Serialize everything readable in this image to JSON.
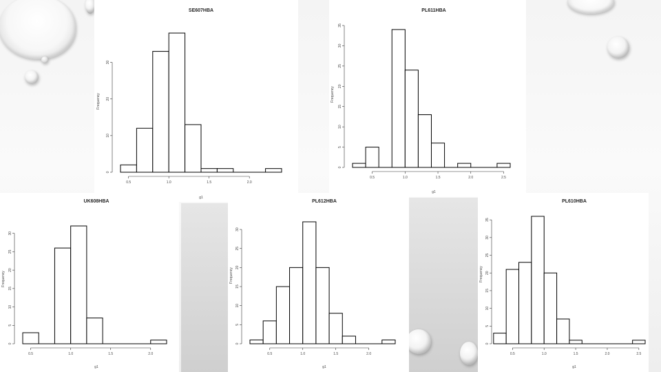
{
  "slide": {
    "panels": [
      {
        "title": "SE607HBA",
        "xlabel": "g1",
        "ylabel": "Frequency",
        "chart_data": {
          "type": "bar",
          "title": "SE607HBA",
          "xlabel": "g1",
          "ylabel": "Frequency",
          "bins": [
            [
              0.4,
              0.6
            ],
            [
              0.6,
              0.8
            ],
            [
              0.8,
              1.0
            ],
            [
              1.0,
              1.2
            ],
            [
              1.2,
              1.4
            ],
            [
              1.4,
              1.6
            ],
            [
              1.6,
              1.8
            ],
            [
              2.2,
              2.4
            ]
          ],
          "values": [
            2,
            12,
            33,
            38,
            13,
            1,
            1,
            1
          ],
          "xticks": [
            0.5,
            1.0,
            1.5,
            2.0
          ],
          "xtick_labels": [
            "0.5",
            "1.0",
            "1.5",
            "2.0"
          ],
          "yticks": [
            0,
            10,
            20,
            30
          ],
          "xlim": [
            0.4,
            2.4
          ],
          "ylim": [
            0,
            38
          ]
        }
      },
      {
        "title": "PL611HBA",
        "xlabel": "g1",
        "ylabel": "Frequency",
        "chart_data": {
          "type": "bar",
          "title": "PL611HBA",
          "xlabel": "g1",
          "ylabel": "Frequency",
          "bins": [
            [
              0.2,
              0.4
            ],
            [
              0.4,
              0.6
            ],
            [
              0.8,
              1.0
            ],
            [
              1.0,
              1.2
            ],
            [
              1.2,
              1.4
            ],
            [
              1.4,
              1.6
            ],
            [
              1.8,
              2.0
            ],
            [
              2.4,
              2.6
            ]
          ],
          "values": [
            1,
            5,
            34,
            24,
            13,
            6,
            1,
            1
          ],
          "xticks": [
            0.5,
            1.0,
            1.5,
            2.0,
            2.5
          ],
          "xtick_labels": [
            "0.5",
            "1.0",
            "1.5",
            "2.0",
            "2.5"
          ],
          "yticks": [
            0,
            5,
            10,
            15,
            20,
            25,
            30,
            35
          ],
          "xlim": [
            0.2,
            2.6
          ],
          "ylim": [
            0,
            35
          ]
        }
      },
      {
        "title": "UK608HBA",
        "xlabel": "g1",
        "ylabel": "Frequency",
        "chart_data": {
          "type": "bar",
          "title": "UK608HBA",
          "xlabel": "g1",
          "ylabel": "Frequency",
          "bins": [
            [
              0.4,
              0.6
            ],
            [
              0.8,
              1.0
            ],
            [
              1.0,
              1.2
            ],
            [
              1.2,
              1.4
            ],
            [
              2.0,
              2.2
            ]
          ],
          "values": [
            3,
            26,
            32,
            7,
            1
          ],
          "xticks": [
            0.5,
            1.0,
            1.5,
            2.0
          ],
          "xtick_labels": [
            "0.5",
            "1.0",
            "1.5",
            "2.0"
          ],
          "yticks": [
            0,
            5,
            10,
            15,
            20,
            25,
            30
          ],
          "xlim": [
            0.4,
            2.2
          ],
          "ylim": [
            0,
            32
          ]
        }
      },
      {
        "title": "PL612HBA",
        "xlabel": "g1",
        "ylabel": "Frequency",
        "chart_data": {
          "type": "bar",
          "title": "PL612HBA",
          "xlabel": "g1",
          "ylabel": "Frequency",
          "bins": [
            [
              0.2,
              0.4
            ],
            [
              0.4,
              0.6
            ],
            [
              0.6,
              0.8
            ],
            [
              0.8,
              1.0
            ],
            [
              1.0,
              1.2
            ],
            [
              1.2,
              1.4
            ],
            [
              1.4,
              1.6
            ],
            [
              1.6,
              1.8
            ],
            [
              2.2,
              2.4
            ]
          ],
          "values": [
            1,
            6,
            15,
            20,
            32,
            20,
            8,
            2,
            1
          ],
          "xticks": [
            0.5,
            1.0,
            1.5,
            2.0
          ],
          "xtick_labels": [
            "0.5",
            "1.0",
            "1.5",
            "2.0"
          ],
          "yticks": [
            0,
            5,
            10,
            15,
            20,
            25,
            30
          ],
          "xlim": [
            0.2,
            2.4
          ],
          "ylim": [
            0,
            32
          ]
        }
      },
      {
        "title": "PL610HBA",
        "xlabel": "g1",
        "ylabel": "Frequency",
        "chart_data": {
          "type": "bar",
          "title": "PL610HBA",
          "xlabel": "g1",
          "ylabel": "Frequency",
          "bins": [
            [
              0.2,
              0.4
            ],
            [
              0.4,
              0.6
            ],
            [
              0.6,
              0.8
            ],
            [
              0.8,
              1.0
            ],
            [
              1.0,
              1.2
            ],
            [
              1.2,
              1.4
            ],
            [
              1.4,
              1.6
            ],
            [
              2.4,
              2.6
            ]
          ],
          "values": [
            3,
            21,
            23,
            36,
            20,
            7,
            1,
            1
          ],
          "xticks": [
            0.5,
            1.0,
            1.5,
            2.0,
            2.5
          ],
          "xtick_labels": [
            "0.5",
            "1.0",
            "1.5",
            "2.0",
            "2.5"
          ],
          "yticks": [
            0,
            5,
            10,
            15,
            20,
            25,
            30,
            35
          ],
          "xlim": [
            0.3,
            2.6
          ],
          "ylim": [
            0,
            36
          ]
        }
      }
    ]
  }
}
